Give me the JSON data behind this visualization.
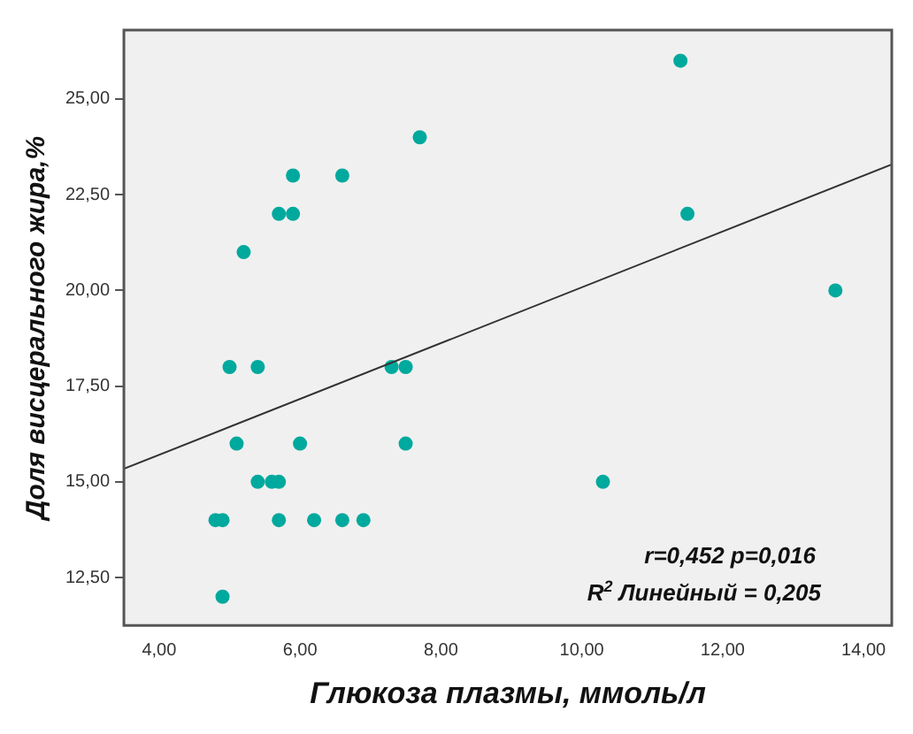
{
  "chart_data": {
    "type": "scatter",
    "xlabel": "Глюкоза плазмы, ммоль/л",
    "ylabel": "Доля висцерального жира,%",
    "xlim": [
      3.5,
      14.4
    ],
    "ylim": [
      11.25,
      26.8
    ],
    "xticks": [
      {
        "value": 4,
        "label": "4,00"
      },
      {
        "value": 6,
        "label": "6,00"
      },
      {
        "value": 8,
        "label": "8,00"
      },
      {
        "value": 10,
        "label": "10,00"
      },
      {
        "value": 12,
        "label": "12,00"
      },
      {
        "value": 14,
        "label": "14,00"
      }
    ],
    "yticks": [
      {
        "value": 12.5,
        "label": "12,50"
      },
      {
        "value": 15,
        "label": "15,00"
      },
      {
        "value": 17.5,
        "label": "17,50"
      },
      {
        "value": 20,
        "label": "20,00"
      },
      {
        "value": 22.5,
        "label": "22,50"
      },
      {
        "value": 25,
        "label": "25,00"
      }
    ],
    "grid": false,
    "legend": false,
    "marker": "circle",
    "series": [
      {
        "color": "#00a99d",
        "x": [
          7.7,
          5.9,
          6.6,
          5.7,
          5.9,
          5.2,
          5.0,
          5.4,
          7.3,
          7.5,
          5.1,
          6.0,
          7.5,
          5.4,
          5.6,
          5.7,
          4.8,
          4.9,
          5.7,
          6.2,
          6.6,
          6.9,
          4.9,
          11.4,
          11.5,
          13.6,
          10.3
        ],
        "values": [
          24,
          23,
          23,
          22,
          22,
          21,
          18,
          18,
          18,
          18,
          16,
          16,
          16,
          15,
          15,
          15,
          14,
          14,
          14,
          14,
          14,
          14,
          12,
          26,
          22,
          20,
          15
        ]
      },
      {
        "type": "line",
        "color": "#333333",
        "x": [
          3.5,
          14.4
        ],
        "values": [
          15.34,
          23.29
        ],
        "marker": "none",
        "line_style": "solid"
      }
    ],
    "annotations": [
      "r=0,452 p=0,016",
      "R$^{2}$ Линейный = 0,205"
    ]
  }
}
